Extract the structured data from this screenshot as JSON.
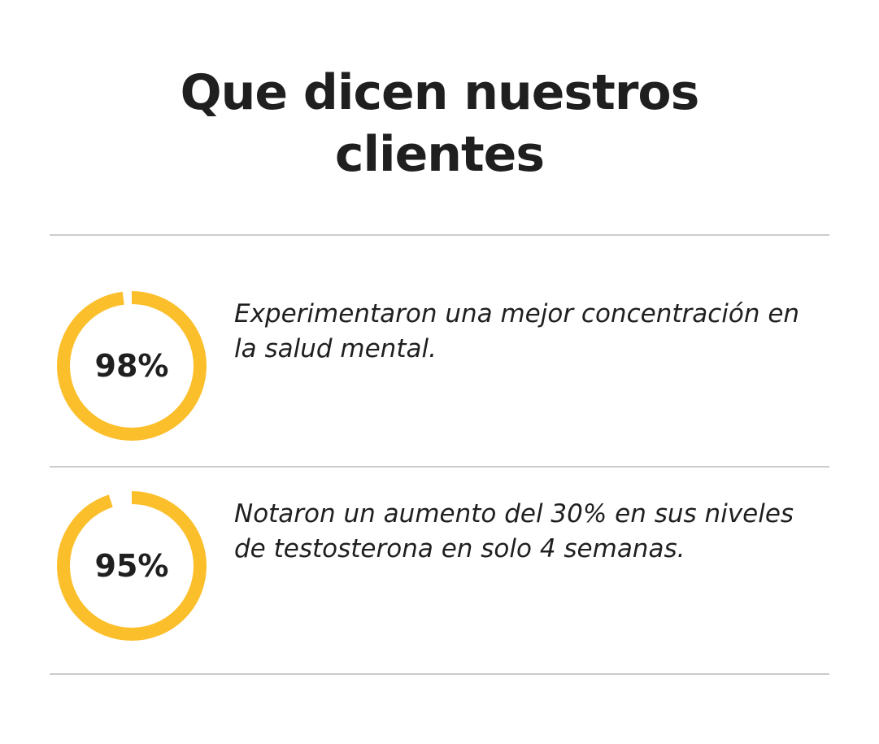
{
  "heading": {
    "line1": "Que dicen nuestros",
    "line2": "clientes"
  },
  "colors": {
    "accent": "#FBBF2C",
    "text": "#1F1F1F",
    "divider": "#CCCCCC"
  },
  "stats": [
    {
      "value_label": "98%",
      "fraction": 0.98,
      "text": "Experimentaron una mejor concentración en la salud mental."
    },
    {
      "value_label": "95%",
      "fraction": 0.95,
      "text": "Notaron un aumento del 30% en sus niveles de testosterona en solo 4 semanas."
    }
  ]
}
